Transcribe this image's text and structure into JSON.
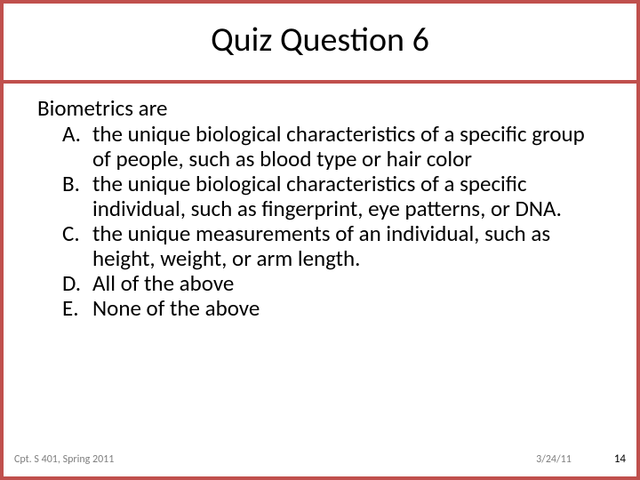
{
  "slide": {
    "border_color": "#c0504d",
    "background_color": "#ffffff",
    "title": "Quiz Question 6",
    "title_fontsize": 38,
    "title_color": "#000000",
    "stem": "Biometrics are",
    "body_fontsize": 25,
    "body_color": "#000000",
    "options": [
      {
        "letter": "A.",
        "text": "the unique biological characteristics of a specific group of people, such as blood type or hair color"
      },
      {
        "letter": "B.",
        "text": "the unique biological characteristics of a specific individual, such as fingerprint, eye patterns, or DNA."
      },
      {
        "letter": "C.",
        "text": "the unique measurements of an individual, such as height, weight, or arm length."
      },
      {
        "letter": "D.",
        "text": "All of the above"
      },
      {
        "letter": "E.",
        "text": "None of the above"
      }
    ],
    "footer": {
      "left": "Cpt. S 401, Spring 2011",
      "date": "3/24/11",
      "slide_number": "14",
      "left_color": "#7f7f7f",
      "date_color": "#7f7f7f",
      "num_color": "#000000",
      "fontsize": 12
    }
  }
}
